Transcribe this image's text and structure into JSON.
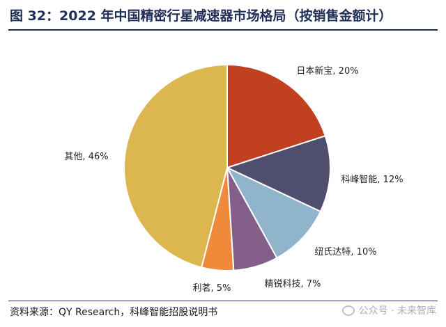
{
  "header": {
    "title": "图 32：2022 年中国精密行星减速器市场格局（按销售金额计）"
  },
  "footer": {
    "source": "资料来源：QY Research，科峰智能招股说明书"
  },
  "watermark": {
    "text": "公众号 · 未来智库",
    "icon": "wechat-icon"
  },
  "chart_data": {
    "type": "pie",
    "title": "2022 年中国精密行星减速器市场格局（按销售金额计）",
    "slices": [
      {
        "label": "日本新宝, 20%",
        "value": 20,
        "color": "#c1401f"
      },
      {
        "label": "科峰智能, 12%",
        "value": 12,
        "color": "#4f4e6e"
      },
      {
        "label": "纽氏达特, 10%",
        "value": 10,
        "color": "#8fb4cb"
      },
      {
        "label": "精锐科技, 7%",
        "value": 7,
        "color": "#845f8a"
      },
      {
        "label": "利茗, 5%",
        "value": 5,
        "color": "#ef8a3a"
      },
      {
        "label": "其他, 46%",
        "value": 46,
        "color": "#dcb750"
      }
    ],
    "start_angle_deg": 0,
    "direction": "clockwise",
    "legend": "none"
  }
}
